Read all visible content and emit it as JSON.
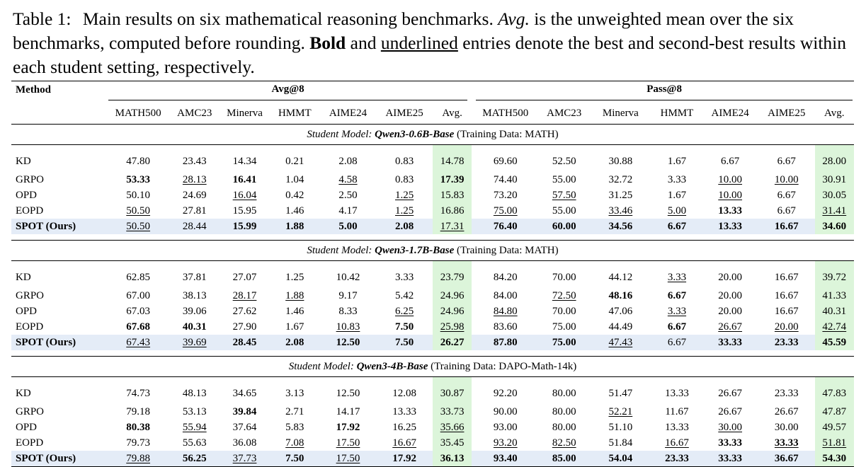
{
  "caption": {
    "label": "Table 1:",
    "p1": "Main results on six mathematical reasoning benchmarks.",
    "avg_word": "Avg.",
    "p2": "is the unweighted mean over the six benchmarks, computed before rounding.",
    "bold_word": "Bold",
    "and_word": "and",
    "underline_word": "underlined",
    "p3": "entries denote the best and second-best results within each student setting, respectively."
  },
  "header": {
    "method": "Method",
    "group_avg": "Avg@8",
    "group_pass": "Pass@8",
    "columns": [
      "MATH500",
      "AMC23",
      "Minerva",
      "HMMT",
      "AIME24",
      "AIME25",
      "Avg.",
      "MATH500",
      "AMC23",
      "Minerva",
      "HMMT",
      "AIME24",
      "AIME25",
      "Avg."
    ]
  },
  "sections": [
    {
      "prefix": "Student Model:",
      "model": "Qwen3-0.6B-Base",
      "data": "(Training Data: MATH)",
      "rows": [
        {
          "method": "KD",
          "values": [
            "47.80",
            "23.43",
            "14.34",
            "0.21",
            "2.08",
            "0.83",
            "14.78",
            "69.60",
            "52.50",
            "30.88",
            "1.67",
            "6.67",
            "6.67",
            "28.00"
          ]
        },
        {
          "method": "GRPO",
          "values": [
            "53.33",
            "28.13",
            "16.41",
            "1.04",
            "4.58",
            "0.83",
            "17.39",
            "74.40",
            "55.00",
            "32.72",
            "3.33",
            "10.00",
            "10.00",
            "30.91"
          ]
        },
        {
          "method": "OPD",
          "values": [
            "50.10",
            "24.69",
            "16.04",
            "0.42",
            "2.50",
            "1.25",
            "15.83",
            "73.20",
            "57.50",
            "31.25",
            "1.67",
            "10.00",
            "6.67",
            "30.05"
          ]
        },
        {
          "method": "EOPD",
          "values": [
            "50.50",
            "27.81",
            "15.95",
            "1.46",
            "4.17",
            "1.25",
            "16.86",
            "75.00",
            "55.00",
            "33.46",
            "5.00",
            "13.33",
            "6.67",
            "31.41"
          ]
        },
        {
          "method": "SPOT (Ours)",
          "values": [
            "50.50",
            "28.44",
            "15.99",
            "1.88",
            "5.00",
            "2.08",
            "17.31",
            "76.40",
            "60.00",
            "34.56",
            "6.67",
            "13.33",
            "16.67",
            "34.60"
          ]
        }
      ]
    },
    {
      "prefix": "Student Model:",
      "model": "Qwen3-1.7B-Base",
      "data": "(Training Data: MATH)",
      "rows": [
        {
          "method": "KD",
          "values": [
            "62.85",
            "37.81",
            "27.07",
            "1.25",
            "10.42",
            "3.33",
            "23.79",
            "84.20",
            "70.00",
            "44.12",
            "3.33",
            "20.00",
            "16.67",
            "39.72"
          ]
        },
        {
          "method": "GRPO",
          "values": [
            "67.00",
            "38.13",
            "28.17",
            "1.88",
            "9.17",
            "5.42",
            "24.96",
            "84.00",
            "72.50",
            "48.16",
            "6.67",
            "20.00",
            "16.67",
            "41.33"
          ]
        },
        {
          "method": "OPD",
          "values": [
            "67.03",
            "39.06",
            "27.62",
            "1.46",
            "8.33",
            "6.25",
            "24.96",
            "84.80",
            "70.00",
            "47.06",
            "3.33",
            "20.00",
            "16.67",
            "40.31"
          ]
        },
        {
          "method": "EOPD",
          "values": [
            "67.68",
            "40.31",
            "27.90",
            "1.67",
            "10.83",
            "7.50",
            "25.98",
            "83.60",
            "75.00",
            "44.49",
            "6.67",
            "26.67",
            "20.00",
            "42.74"
          ]
        },
        {
          "method": "SPOT (Ours)",
          "values": [
            "67.43",
            "39.69",
            "28.45",
            "2.08",
            "12.50",
            "7.50",
            "26.27",
            "87.80",
            "75.00",
            "47.43",
            "6.67",
            "33.33",
            "23.33",
            "45.59"
          ]
        }
      ]
    },
    {
      "prefix": "Student Model:",
      "model": "Qwen3-4B-Base",
      "data": "(Training Data: DAPO-Math-14k)",
      "rows": [
        {
          "method": "KD",
          "values": [
            "74.73",
            "48.13",
            "34.65",
            "3.13",
            "12.50",
            "12.08",
            "30.87",
            "92.20",
            "80.00",
            "51.47",
            "13.33",
            "26.67",
            "23.33",
            "47.83"
          ]
        },
        {
          "method": "GRPO",
          "values": [
            "79.18",
            "53.13",
            "39.84",
            "2.71",
            "14.17",
            "13.33",
            "33.73",
            "90.00",
            "80.00",
            "52.21",
            "11.67",
            "26.67",
            "26.67",
            "47.87"
          ]
        },
        {
          "method": "OPD",
          "values": [
            "80.38",
            "55.94",
            "37.64",
            "5.83",
            "17.92",
            "16.25",
            "35.66",
            "93.00",
            "80.00",
            "51.10",
            "13.33",
            "30.00",
            "30.00",
            "49.57"
          ]
        },
        {
          "method": "EOPD",
          "values": [
            "79.73",
            "55.63",
            "36.08",
            "7.08",
            "17.50",
            "16.67",
            "35.45",
            "93.20",
            "82.50",
            "51.84",
            "16.67",
            "33.33",
            "33.33",
            "51.81"
          ]
        },
        {
          "method": "SPOT (Ours)",
          "values": [
            "79.88",
            "56.25",
            "37.73",
            "7.50",
            "17.50",
            "17.92",
            "36.13",
            "93.40",
            "85.00",
            "54.04",
            "23.33",
            "33.33",
            "36.67",
            "54.30"
          ]
        }
      ]
    }
  ],
  "styles": {
    "bold": [
      [
        [
          1,
          0
        ],
        [
          1,
          2
        ],
        [
          1,
          6
        ],
        [
          4,
          2
        ],
        [
          4,
          3
        ],
        [
          4,
          4
        ],
        [
          4,
          5
        ],
        [
          4,
          7
        ],
        [
          4,
          8
        ],
        [
          4,
          9
        ],
        [
          4,
          10
        ],
        [
          4,
          11
        ],
        [
          4,
          12
        ],
        [
          4,
          13
        ],
        [
          3,
          11
        ]
      ],
      [
        [
          3,
          0
        ],
        [
          3,
          1
        ],
        [
          3,
          5
        ],
        [
          1,
          9
        ],
        [
          1,
          10
        ],
        [
          3,
          10
        ],
        [
          4,
          2
        ],
        [
          4,
          3
        ],
        [
          4,
          4
        ],
        [
          4,
          5
        ],
        [
          4,
          6
        ],
        [
          4,
          7
        ],
        [
          4,
          8
        ],
        [
          4,
          11
        ],
        [
          4,
          12
        ],
        [
          4,
          13
        ]
      ],
      [
        [
          2,
          0
        ],
        [
          1,
          2
        ],
        [
          2,
          4
        ],
        [
          4,
          1
        ],
        [
          4,
          3
        ],
        [
          4,
          5
        ],
        [
          4,
          6
        ],
        [
          4,
          7
        ],
        [
          4,
          8
        ],
        [
          4,
          9
        ],
        [
          4,
          10
        ],
        [
          3,
          11
        ],
        [
          4,
          11
        ],
        [
          3,
          12
        ],
        [
          4,
          12
        ],
        [
          4,
          13
        ]
      ]
    ],
    "underline": [
      [
        [
          3,
          0
        ],
        [
          4,
          0
        ],
        [
          1,
          1
        ],
        [
          2,
          2
        ],
        [
          1,
          4
        ],
        [
          2,
          5
        ],
        [
          3,
          5
        ],
        [
          4,
          6
        ],
        [
          3,
          7
        ],
        [
          2,
          8
        ],
        [
          3,
          9
        ],
        [
          3,
          10
        ],
        [
          1,
          11
        ],
        [
          2,
          11
        ],
        [
          1,
          12
        ],
        [
          3,
          13
        ]
      ],
      [
        [
          4,
          0
        ],
        [
          4,
          1
        ],
        [
          1,
          2
        ],
        [
          1,
          3
        ],
        [
          3,
          4
        ],
        [
          2,
          5
        ],
        [
          3,
          6
        ],
        [
          2,
          7
        ],
        [
          1,
          8
        ],
        [
          4,
          9
        ],
        [
          0,
          10
        ],
        [
          2,
          10
        ],
        [
          3,
          11
        ],
        [
          3,
          12
        ],
        [
          3,
          13
        ]
      ],
      [
        [
          4,
          0
        ],
        [
          2,
          1
        ],
        [
          4,
          2
        ],
        [
          3,
          3
        ],
        [
          3,
          4
        ],
        [
          4,
          4
        ],
        [
          3,
          5
        ],
        [
          2,
          6
        ],
        [
          3,
          7
        ],
        [
          3,
          8
        ],
        [
          1,
          9
        ],
        [
          3,
          10
        ],
        [
          2,
          11
        ],
        [
          3,
          12
        ],
        [
          3,
          13
        ]
      ]
    ]
  },
  "colors": {
    "avg_highlight": "#dcf5da",
    "ours_highlight": "#e4ecf7"
  }
}
